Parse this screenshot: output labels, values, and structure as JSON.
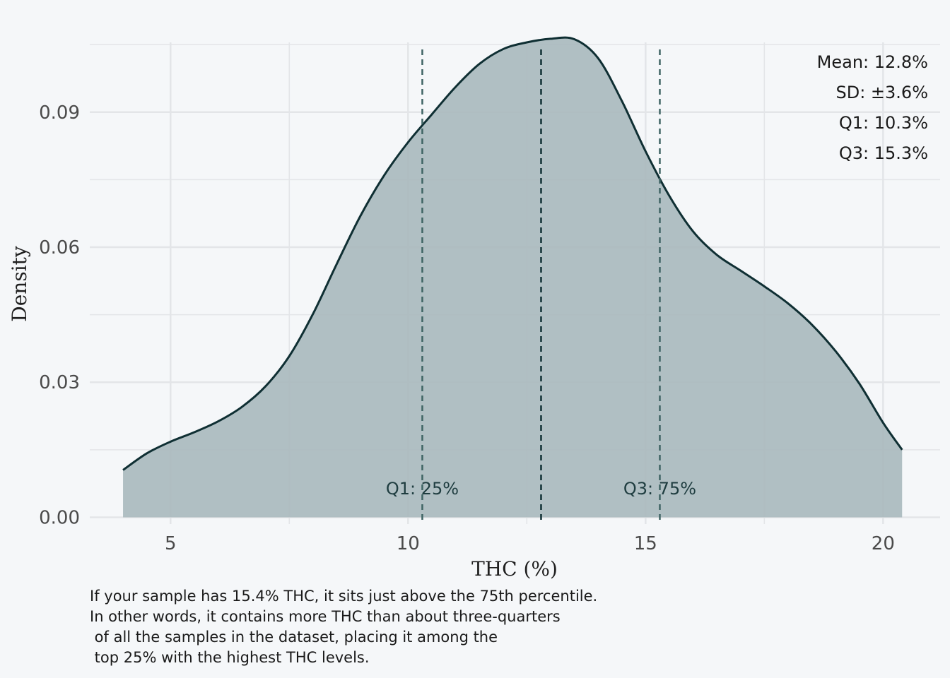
{
  "chart_data": {
    "type": "area",
    "title": "",
    "xlabel": "THC (%)",
    "ylabel": "Density",
    "xlim": [
      3.3,
      21.2
    ],
    "ylim": [
      -0.0015,
      0.1055
    ],
    "x_ticks": [
      5,
      10,
      15,
      20
    ],
    "y_ticks": [
      0.0,
      0.03,
      0.06,
      0.09
    ],
    "grid": true,
    "series": [
      {
        "x": [
          4.0,
          4.5,
          5.0,
          5.5,
          6.0,
          6.5,
          7.0,
          7.5,
          8.0,
          8.5,
          9.0,
          9.5,
          10.0,
          10.5,
          11.0,
          11.5,
          12.0,
          12.5,
          13.0,
          13.5,
          14.0,
          14.5,
          15.0,
          15.5,
          16.0,
          16.5,
          17.0,
          17.5,
          18.0,
          18.5,
          19.0,
          19.5,
          20.0,
          20.4
        ],
        "y": [
          0.0105,
          0.0142,
          0.0168,
          0.0189,
          0.0213,
          0.0245,
          0.0291,
          0.0358,
          0.0452,
          0.0563,
          0.067,
          0.076,
          0.0833,
          0.0895,
          0.0956,
          0.1007,
          0.104,
          0.1055,
          0.1063,
          0.1062,
          0.102,
          0.0925,
          0.0813,
          0.0714,
          0.0635,
          0.0583,
          0.0548,
          0.0513,
          0.0475,
          0.0428,
          0.0369,
          0.0297,
          0.021,
          0.015
        ]
      }
    ],
    "vlines": [
      {
        "x": 10.3,
        "style": "dashed",
        "label": "Q1: 25%",
        "color": "#3f6464"
      },
      {
        "x": 12.8,
        "style": "dashed",
        "label": "",
        "color": "#0f2f33"
      },
      {
        "x": 15.3,
        "style": "dashed",
        "label": "Q3: 75%",
        "color": "#3f6464"
      }
    ],
    "stats": [
      "Mean: 12.8%",
      "SD: ±3.6%",
      "Q1: 10.3%",
      "Q3: 15.3%"
    ],
    "colors": {
      "fill": "#a8b8bd",
      "line": "#0f2f33",
      "grid": "#e3e5e8",
      "background": "#f5f7f9"
    }
  },
  "caption": "If your sample has 15.4% THC, it sits just above the 75th percentile.\nIn other words, it contains more THC than about three-quarters\n of all the samples in the dataset, placing it among the\n top 25% with the highest THC levels."
}
